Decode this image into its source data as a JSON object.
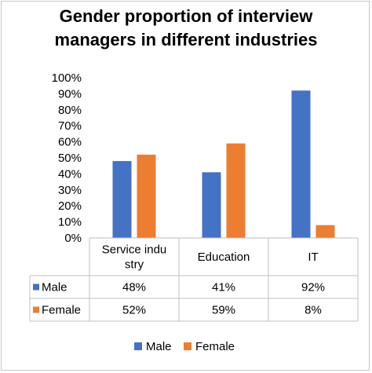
{
  "chart_data": {
    "type": "bar",
    "title_lines": [
      "Gender proportion of interview",
      "managers in different industries"
    ],
    "categories": [
      [
        "Service indu",
        "stry"
      ],
      [
        "Education"
      ],
      [
        "IT"
      ]
    ],
    "series": [
      {
        "name": "Male",
        "values": [
          48,
          41,
          92
        ],
        "labels": [
          "48%",
          "41%",
          "92%"
        ],
        "color": "#4472c4"
      },
      {
        "name": "Female",
        "values": [
          52,
          59,
          8
        ],
        "labels": [
          "52%",
          "59%",
          "8%"
        ],
        "color": "#ed7d31"
      }
    ],
    "y_ticks": [
      "100%",
      "90%",
      "80%",
      "70%",
      "60%",
      "50%",
      "40%",
      "30%",
      "20%",
      "10%",
      "0%"
    ],
    "ylim": [
      0,
      100
    ],
    "legend_position": "bottom",
    "data_table": true
  }
}
